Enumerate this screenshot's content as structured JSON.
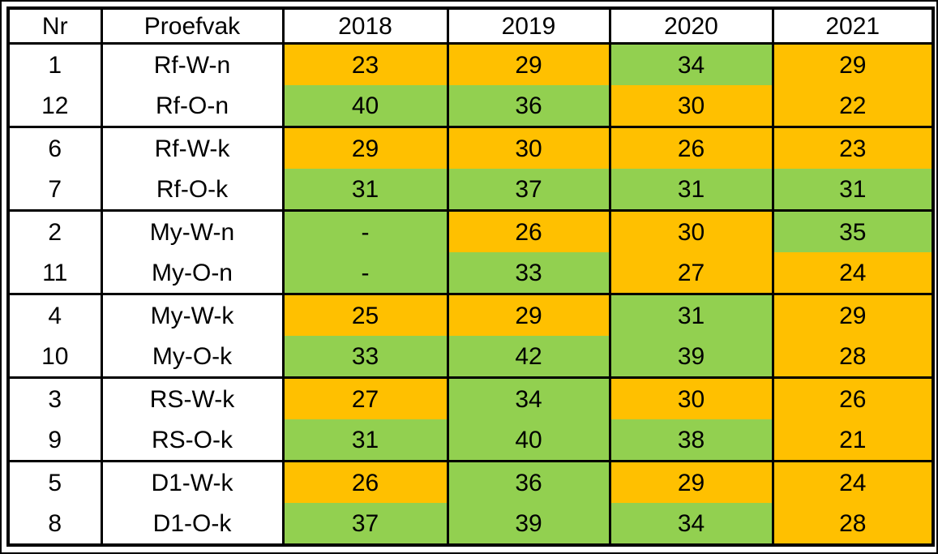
{
  "colors": {
    "orange": "#FFC000",
    "green": "#92D050",
    "border": "#000000",
    "header_bg": "#FFFFFF",
    "text": "#000000"
  },
  "chart_data": {
    "type": "table",
    "columns": [
      "Nr",
      "Proefvak",
      "2018",
      "2019",
      "2020",
      "2021"
    ],
    "legend_note_colors": {
      "orange_fill": "#FFC000",
      "green_fill": "#92D050"
    },
    "groups": [
      {
        "rows": [
          {
            "nr": "1",
            "proefvak": "Rf-W-n",
            "cells": [
              {
                "v": "23",
                "fill": "orange"
              },
              {
                "v": "29",
                "fill": "orange"
              },
              {
                "v": "34",
                "fill": "green"
              },
              {
                "v": "29",
                "fill": "orange"
              }
            ]
          },
          {
            "nr": "12",
            "proefvak": "Rf-O-n",
            "cells": [
              {
                "v": "40",
                "fill": "green"
              },
              {
                "v": "36",
                "fill": "green"
              },
              {
                "v": "30",
                "fill": "orange"
              },
              {
                "v": "22",
                "fill": "orange"
              }
            ]
          }
        ]
      },
      {
        "rows": [
          {
            "nr": "6",
            "proefvak": "Rf-W-k",
            "cells": [
              {
                "v": "29",
                "fill": "orange"
              },
              {
                "v": "30",
                "fill": "orange"
              },
              {
                "v": "26",
                "fill": "orange"
              },
              {
                "v": "23",
                "fill": "orange"
              }
            ]
          },
          {
            "nr": "7",
            "proefvak": "Rf-O-k",
            "cells": [
              {
                "v": "31",
                "fill": "green"
              },
              {
                "v": "37",
                "fill": "green"
              },
              {
                "v": "31",
                "fill": "green"
              },
              {
                "v": "31",
                "fill": "green"
              }
            ]
          }
        ]
      },
      {
        "rows": [
          {
            "nr": "2",
            "proefvak": "My-W-n",
            "cells": [
              {
                "v": "-",
                "fill": "green"
              },
              {
                "v": "26",
                "fill": "orange"
              },
              {
                "v": "30",
                "fill": "orange"
              },
              {
                "v": "35",
                "fill": "green"
              }
            ]
          },
          {
            "nr": "11",
            "proefvak": "My-O-n",
            "cells": [
              {
                "v": "-",
                "fill": "green"
              },
              {
                "v": "33",
                "fill": "green"
              },
              {
                "v": "27",
                "fill": "orange"
              },
              {
                "v": "24",
                "fill": "orange"
              }
            ]
          }
        ]
      },
      {
        "rows": [
          {
            "nr": "4",
            "proefvak": "My-W-k",
            "cells": [
              {
                "v": "25",
                "fill": "orange"
              },
              {
                "v": "29",
                "fill": "orange"
              },
              {
                "v": "31",
                "fill": "green"
              },
              {
                "v": "29",
                "fill": "orange"
              }
            ]
          },
          {
            "nr": "10",
            "proefvak": "My-O-k",
            "cells": [
              {
                "v": "33",
                "fill": "green"
              },
              {
                "v": "42",
                "fill": "green"
              },
              {
                "v": "39",
                "fill": "green"
              },
              {
                "v": "28",
                "fill": "orange"
              }
            ]
          }
        ]
      },
      {
        "rows": [
          {
            "nr": "3",
            "proefvak": "RS-W-k",
            "cells": [
              {
                "v": "27",
                "fill": "orange"
              },
              {
                "v": "34",
                "fill": "green"
              },
              {
                "v": "30",
                "fill": "orange"
              },
              {
                "v": "26",
                "fill": "orange"
              }
            ]
          },
          {
            "nr": "9",
            "proefvak": "RS-O-k",
            "cells": [
              {
                "v": "31",
                "fill": "green"
              },
              {
                "v": "40",
                "fill": "green"
              },
              {
                "v": "38",
                "fill": "green"
              },
              {
                "v": "21",
                "fill": "orange"
              }
            ]
          }
        ]
      },
      {
        "rows": [
          {
            "nr": "5",
            "proefvak": "D1-W-k",
            "cells": [
              {
                "v": "26",
                "fill": "orange"
              },
              {
                "v": "36",
                "fill": "green"
              },
              {
                "v": "29",
                "fill": "orange"
              },
              {
                "v": "24",
                "fill": "orange"
              }
            ]
          },
          {
            "nr": "8",
            "proefvak": "D1-O-k",
            "cells": [
              {
                "v": "37",
                "fill": "green"
              },
              {
                "v": "39",
                "fill": "green"
              },
              {
                "v": "34",
                "fill": "green"
              },
              {
                "v": "28",
                "fill": "orange"
              }
            ]
          }
        ]
      }
    ]
  }
}
